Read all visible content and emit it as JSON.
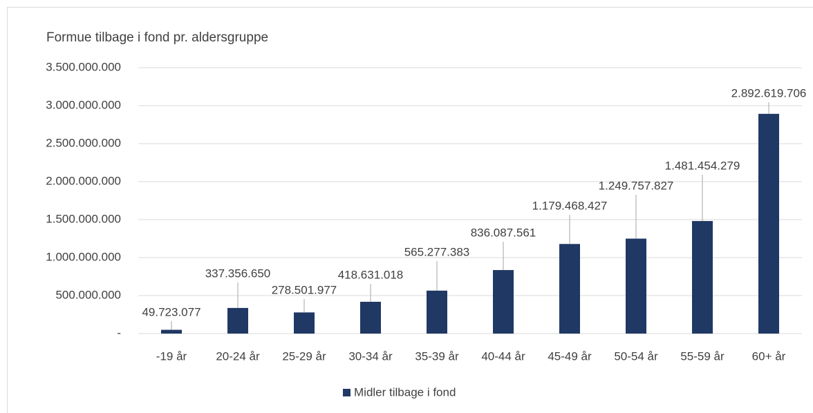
{
  "chart_data": {
    "type": "bar",
    "title": "Formue tilbage i fond pr. aldersgruppe",
    "categories": [
      "-19 år",
      "20-24 år",
      "25-29 år",
      "30-34 år",
      "35-39 år",
      "40-44 år",
      "45-49 år",
      "50-54 år",
      "55-59 år",
      "60+ år"
    ],
    "series": [
      {
        "name": "Midler tilbage i fond",
        "color": "#203864",
        "values": [
          49723077,
          337356650,
          278501977,
          418631018,
          565277383,
          836087561,
          1179468427,
          1249757827,
          1481454279,
          2892619706
        ],
        "value_labels": [
          "49.723.077",
          "337.356.650",
          "278.501.977",
          "418.631.018",
          "565.277.383",
          "836.087.561",
          "1.179.468.427",
          "1.249.757.827",
          "1.481.454.279",
          "2.892.619.706"
        ]
      }
    ],
    "ylim": [
      0,
      3500000000
    ],
    "yticks": [
      {
        "value": 0,
        "label": "-"
      },
      {
        "value": 500000000,
        "label": "500.000.000"
      },
      {
        "value": 1000000000,
        "label": "1.000.000.000"
      },
      {
        "value": 1500000000,
        "label": "1.500.000.000"
      },
      {
        "value": 2000000000,
        "label": "2.000.000.000"
      },
      {
        "value": 2500000000,
        "label": "2.500.000.000"
      },
      {
        "value": 3000000000,
        "label": "3.000.000.000"
      },
      {
        "value": 3500000000,
        "label": "3.500.000.000"
      }
    ],
    "grid": true,
    "legend": "bottom"
  }
}
